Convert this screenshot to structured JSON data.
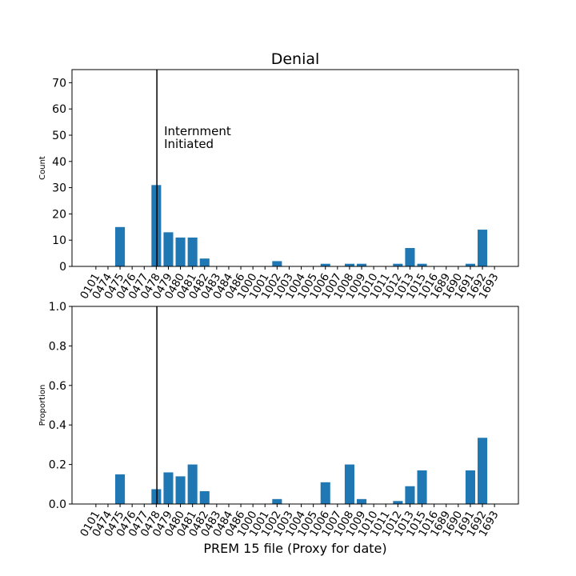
{
  "figure": {
    "title": "Denial",
    "xlabel": "PREM 15 file (Proxy for date)"
  },
  "chart_data": [
    {
      "type": "bar",
      "title": "Denial",
      "ylabel": "Count",
      "xlabel": "",
      "ylim": [
        0,
        75
      ],
      "yticks": [
        0,
        10,
        20,
        30,
        40,
        50,
        60,
        70
      ],
      "categories": [
        "0101",
        "0474",
        "0475",
        "0476",
        "0477",
        "0478",
        "0479",
        "0480",
        "0481",
        "0482",
        "0483",
        "0484",
        "0486",
        "1000",
        "1001",
        "1002",
        "1003",
        "1004",
        "1005",
        "1006",
        "1007",
        "1008",
        "1009",
        "1010",
        "1011",
        "1012",
        "1013",
        "1015",
        "1016",
        "1689",
        "1690",
        "1691",
        "1692",
        "1693"
      ],
      "values": [
        0,
        0,
        15,
        0,
        0,
        31,
        13,
        11,
        11,
        3,
        0,
        0,
        0,
        0,
        0,
        2,
        0,
        0,
        0,
        1,
        0,
        1,
        1,
        0,
        0,
        1,
        7,
        1,
        0,
        0,
        0,
        1,
        14,
        0
      ],
      "color": "#1f77b4",
      "vline": {
        "category": "0478",
        "offset": 0.55
      },
      "annotation": {
        "line1": "Internment",
        "line2": "Initiated"
      },
      "grid": false
    },
    {
      "type": "bar",
      "ylabel": "Proportion",
      "xlabel": "PREM 15 file (Proxy for date)",
      "ylim": [
        0,
        1.0
      ],
      "yticks": [
        0.0,
        0.2,
        0.4,
        0.6,
        0.8,
        1.0
      ],
      "categories": [
        "0101",
        "0474",
        "0475",
        "0476",
        "0477",
        "0478",
        "0479",
        "0480",
        "0481",
        "0482",
        "0483",
        "0484",
        "0486",
        "1000",
        "1001",
        "1002",
        "1003",
        "1004",
        "1005",
        "1006",
        "1007",
        "1008",
        "1009",
        "1010",
        "1011",
        "1012",
        "1013",
        "1015",
        "1016",
        "1689",
        "1690",
        "1691",
        "1692",
        "1693"
      ],
      "values": [
        0,
        0,
        0.15,
        0,
        0,
        0.075,
        0.16,
        0.14,
        0.2,
        0.065,
        0,
        0,
        0,
        0,
        0,
        0.025,
        0,
        0,
        0,
        0.11,
        0,
        0.2,
        0.025,
        0,
        0,
        0.015,
        0.09,
        0.17,
        0,
        0,
        0,
        0.17,
        0.335,
        0
      ],
      "color": "#1f77b4",
      "vline": {
        "category": "0478",
        "offset": 0.55
      },
      "grid": false
    }
  ]
}
